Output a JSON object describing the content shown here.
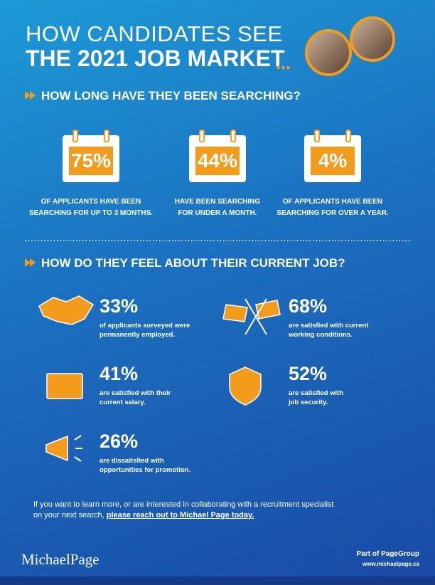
{
  "header": {
    "title_line1": "HOW CANDIDATES SEE",
    "title_line2": "THE 2021 JOB MARKET"
  },
  "search": {
    "heading": "HOW LONG HAVE THEY BEEN SEARCHING?",
    "stats": [
      {
        "value": "75%",
        "lines": [
          "OF APPLICANTS HAVE BEEN",
          "SEARCHING FOR UP TO 3 MONTHS."
        ]
      },
      {
        "value": "44%",
        "lines": [
          "HAVE BEEN SEARCHING",
          "FOR UNDER A MONTH."
        ]
      },
      {
        "value": "4%",
        "lines": [
          "OF APPLICANTS HAVE BEEN",
          "SEARCHING FOR OVER A YEAR."
        ]
      }
    ]
  },
  "feelings": {
    "heading": "HOW DO THEY FEEL ABOUT THEIR CURRENT JOB?",
    "items": [
      {
        "value": "33%",
        "lines": [
          "of applicants surveyed were",
          "permanently employed."
        ]
      },
      {
        "value": "68%",
        "lines": [
          "are satisfied with current",
          "working conditions."
        ]
      },
      {
        "value": "41%",
        "lines": [
          "are satisfied with their",
          "current salary."
        ]
      },
      {
        "value": "52%",
        "lines": [
          "are satisfied with",
          "job security."
        ]
      },
      {
        "value": "26%",
        "lines": [
          "are dissatisfied with",
          "opportunities for promotion."
        ]
      }
    ]
  },
  "footer": {
    "line1": "If you want to learn more, or are interested in collaborating with a recruitment specialist",
    "line2": "on your next search,",
    "link": "please reach out to Michael Page today.",
    "logo": "MichaelPage",
    "group": "Part of PageGroup",
    "url": "www.michaelpage.ca"
  }
}
